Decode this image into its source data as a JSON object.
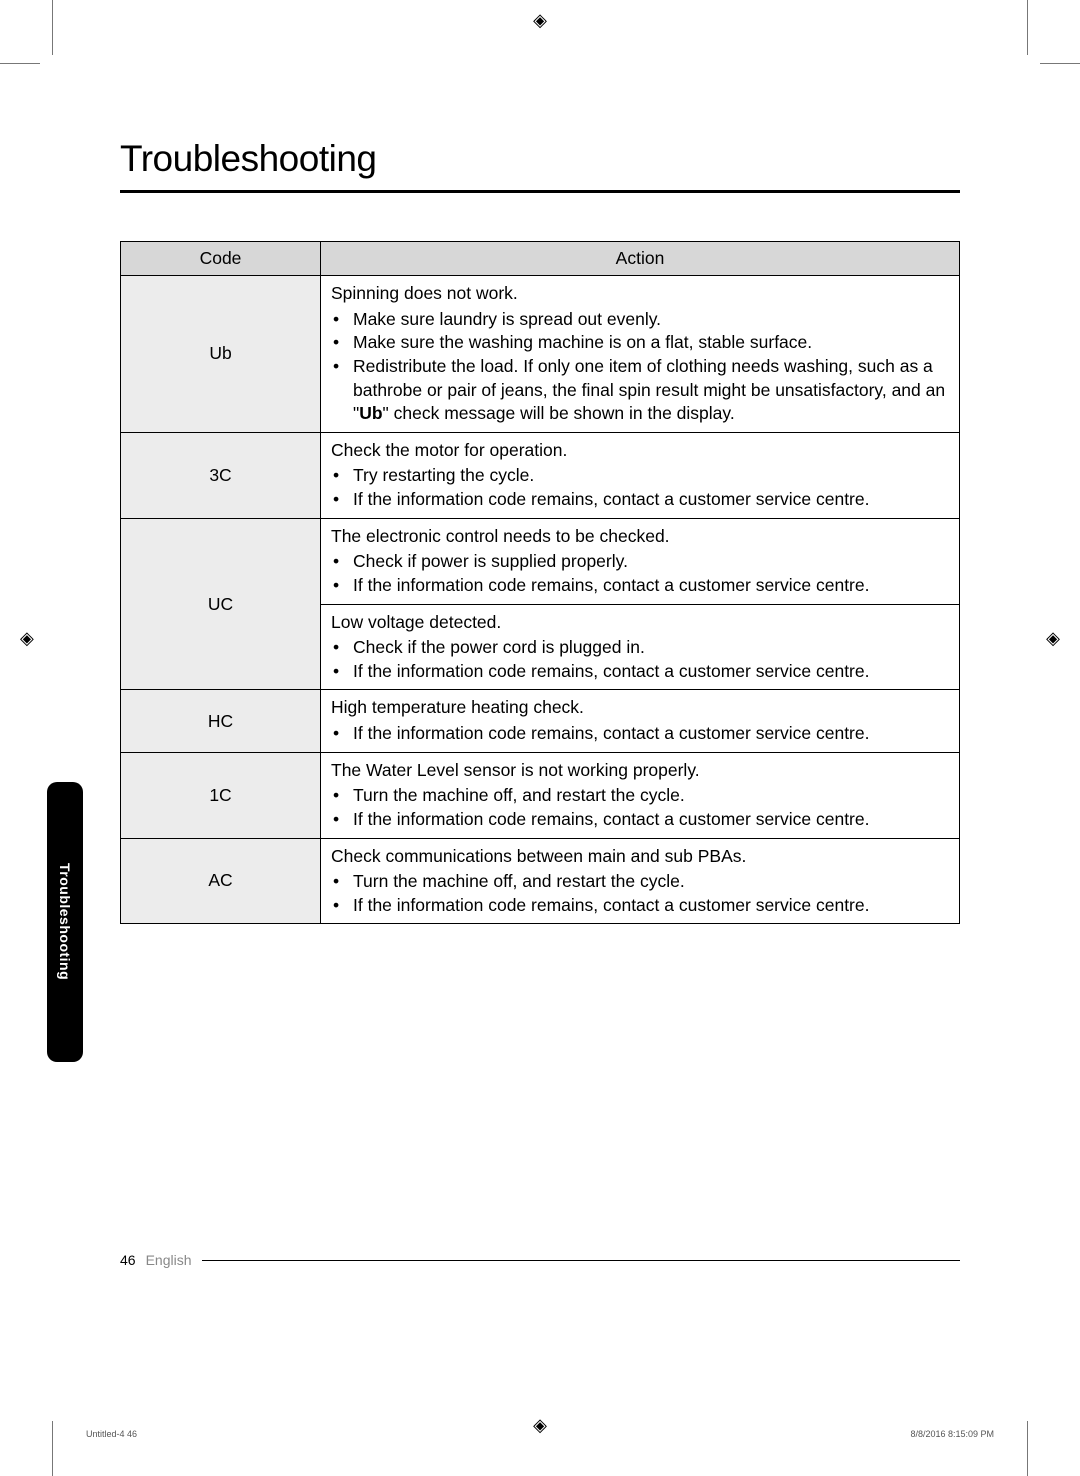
{
  "title": "Troubleshooting",
  "table": {
    "headers": {
      "code": "Code",
      "action": "Action"
    },
    "rows": [
      {
        "code": "Ub",
        "actions": [
          {
            "intro": "Spinning does not work.",
            "items": [
              "Make sure laundry is spread out evenly.",
              "Make sure the washing machine is on a flat, stable surface.",
              "Redistribute the load. If only one item of clothing needs washing, such as a bathrobe or pair of jeans, the final spin result might be unsatisfactory, and an \"Ub\" check message will be shown in the display."
            ]
          }
        ]
      },
      {
        "code": "3C",
        "actions": [
          {
            "intro": "Check the motor for operation.",
            "items": [
              "Try restarting the cycle.",
              "If the information code remains, contact a customer service centre."
            ]
          }
        ]
      },
      {
        "code": "UC",
        "actions": [
          {
            "intro": "The electronic control needs to be checked.",
            "items": [
              "Check if power is supplied properly.",
              "If the information code remains, contact a customer service centre."
            ]
          },
          {
            "intro": "Low voltage detected.",
            "items": [
              "Check if the power cord is plugged in.",
              "If the information code remains, contact a customer service centre."
            ]
          }
        ]
      },
      {
        "code": "HC",
        "actions": [
          {
            "intro": "High temperature heating check.",
            "items": [
              "If the information code remains, contact a customer service centre."
            ]
          }
        ]
      },
      {
        "code": "1C",
        "actions": [
          {
            "intro": "The Water Level sensor is not working properly.",
            "items": [
              "Turn the machine off, and restart the cycle.",
              "If the information code remains, contact a customer service centre."
            ]
          }
        ]
      },
      {
        "code": "AC",
        "actions": [
          {
            "intro": "Check communications between main and sub PBAs.",
            "items": [
              "Turn the machine off, and restart the cycle.",
              "If the information code remains, contact a customer service centre."
            ]
          }
        ]
      }
    ]
  },
  "side_tab": "Troubleshooting",
  "footer": {
    "page": "46",
    "lang": "English"
  },
  "print_footer": {
    "left": "Untitled-4   46",
    "right": "8/8/2016   8:15:09 PM"
  },
  "colors": {
    "header_bg": "#d7d7d7",
    "code_bg": "#ececec",
    "black": "#000000",
    "white": "#ffffff",
    "muted": "#888888"
  }
}
